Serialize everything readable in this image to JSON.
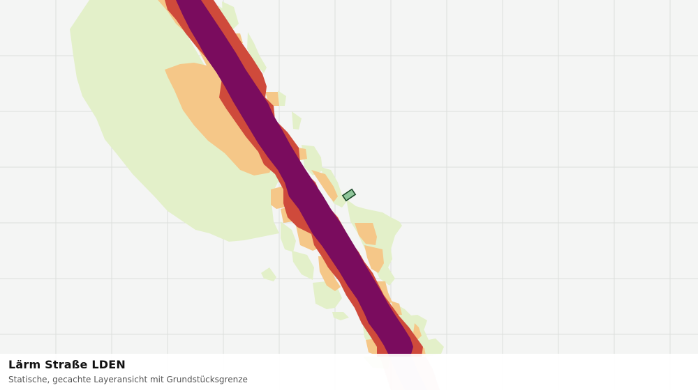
{
  "map": {
    "title": "Lärm Straße LDEN",
    "subtitle": "Statische, gecachte Layeransicht mit Grundstücksgrenze",
    "colors": {
      "background": "#f4f5f4",
      "grid": "#dcdedc",
      "noise_zone_low": "#e3f0c9",
      "noise_zone_mid": "#f5c788",
      "noise_zone_high": "#cf4a3b",
      "noise_zone_max": "#7a0c5e",
      "parcel_fill": "#8fc59a",
      "parcel_stroke": "#1d4a2a"
    }
  }
}
